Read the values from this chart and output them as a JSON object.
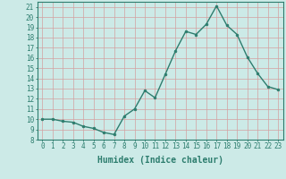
{
  "x": [
    0,
    1,
    2,
    3,
    4,
    5,
    6,
    7,
    8,
    9,
    10,
    11,
    12,
    13,
    14,
    15,
    16,
    17,
    18,
    19,
    20,
    21,
    22,
    23
  ],
  "y": [
    10,
    10,
    9.8,
    9.7,
    9.3,
    9.1,
    8.7,
    8.5,
    10.3,
    11.0,
    12.8,
    12.1,
    14.4,
    16.7,
    18.6,
    18.3,
    19.3,
    21.1,
    19.2,
    18.3,
    16.1,
    14.5,
    13.2,
    12.9
  ],
  "line_color": "#2d7d6e",
  "marker": "o",
  "marker_size": 2.0,
  "line_width": 1.0,
  "bg_color": "#cceae7",
  "grid_color": "#d4a0a0",
  "xlabel": "Humidex (Indice chaleur)",
  "ylabel": "",
  "title": "",
  "xlim": [
    -0.5,
    23.5
  ],
  "ylim": [
    8,
    21.5
  ],
  "xticks": [
    0,
    1,
    2,
    3,
    4,
    5,
    6,
    7,
    8,
    9,
    10,
    11,
    12,
    13,
    14,
    15,
    16,
    17,
    18,
    19,
    20,
    21,
    22,
    23
  ],
  "yticks": [
    8,
    9,
    10,
    11,
    12,
    13,
    14,
    15,
    16,
    17,
    18,
    19,
    20,
    21
  ],
  "xlabel_fontsize": 7,
  "tick_fontsize": 5.5,
  "tick_color": "#2d7d6e",
  "axis_color": "#2d7d6e"
}
